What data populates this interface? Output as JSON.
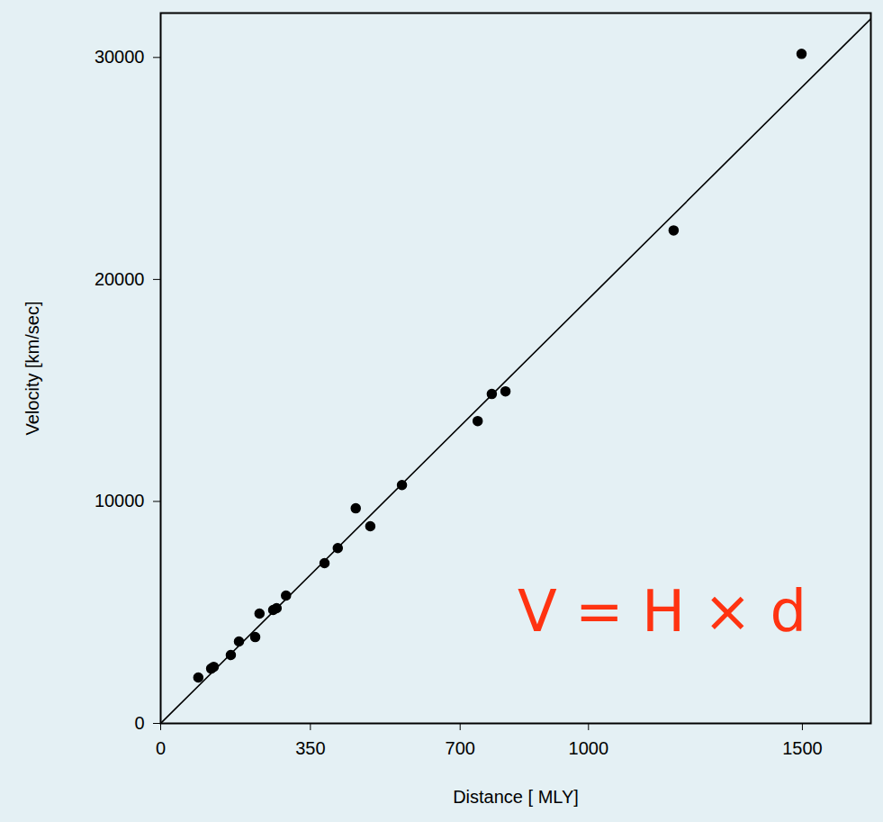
{
  "chart_data": {
    "type": "scatter",
    "x_label": "Distance [ MLY]",
    "y_label": "Velocity [km/sec]",
    "x": [
      88,
      118,
      124,
      164,
      183,
      221,
      231,
      263,
      271,
      293,
      383,
      414,
      456,
      490,
      564,
      741,
      774,
      806,
      1199,
      1498
    ],
    "values": [
      2070,
      2470,
      2550,
      3080,
      3690,
      3890,
      4950,
      5110,
      5190,
      5760,
      7220,
      7900,
      9690,
      8880,
      10740,
      13620,
      14840,
      14960,
      22210,
      30160
    ],
    "color": "#000000",
    "marker": "circle",
    "fit_line": {
      "x": [
        0,
        1660
      ],
      "values": [
        0,
        31740
      ],
      "color": "#000000",
      "line_style": "solid"
    },
    "annotations": [
      {
        "text": "V = H × d",
        "x": 1172,
        "y": 4990,
        "color": "#ff3311"
      }
    ],
    "xlim": [
      0,
      1660
    ],
    "xticks": [
      0,
      350,
      700,
      1000,
      1500
    ],
    "ylim": [
      0,
      32000
    ],
    "yticks": [
      0,
      10000,
      20000,
      30000
    ],
    "grid": false
  }
}
